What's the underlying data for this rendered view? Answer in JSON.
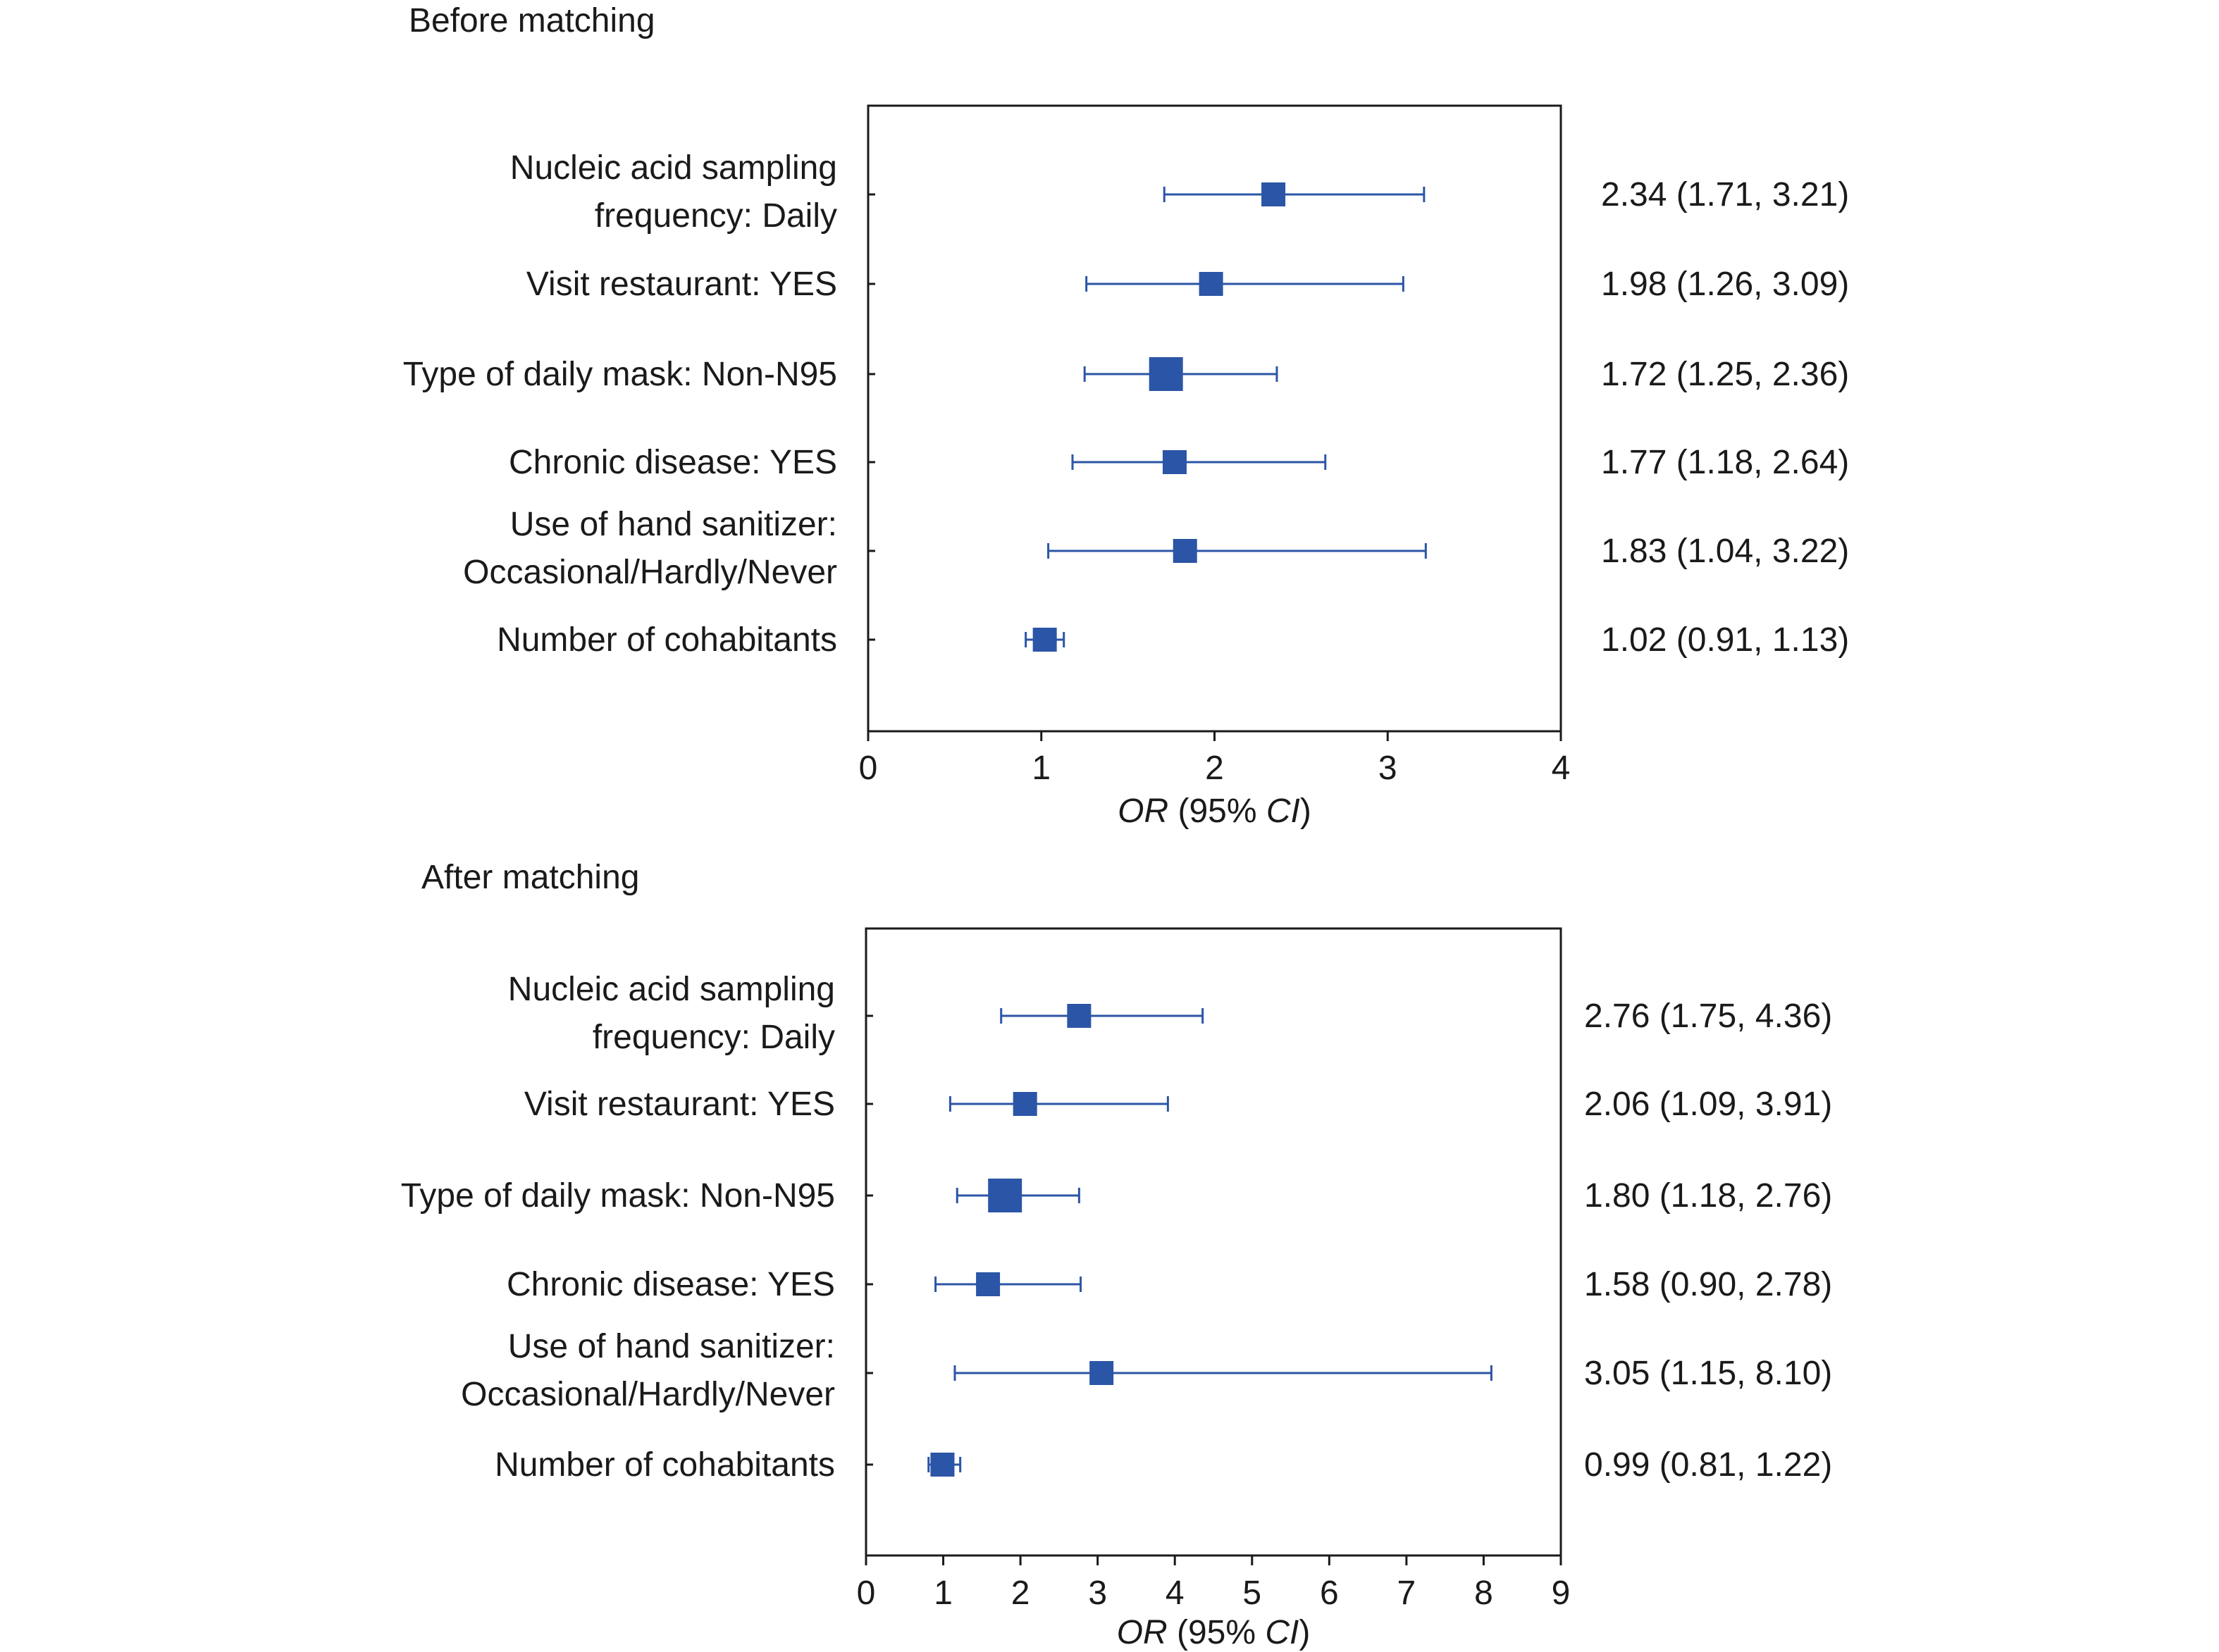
{
  "chart_data": [
    {
      "type": "forest",
      "title": "Before matching",
      "xlabel": "OR (95% CI)",
      "xlim": [
        0,
        4
      ],
      "xticks": [
        0,
        1,
        2,
        3,
        4
      ],
      "grid": false,
      "rows": [
        {
          "label": [
            "Nucleic acid sampling",
            "frequency: Daily"
          ],
          "or": 2.34,
          "lo": 1.71,
          "hi": 3.21,
          "text": "2.34 (1.71, 3.21)"
        },
        {
          "label": [
            "Visit restaurant: YES"
          ],
          "or": 1.98,
          "lo": 1.26,
          "hi": 3.09,
          "text": "1.98 (1.26, 3.09)"
        },
        {
          "label": [
            "Type of daily mask: Non-N95"
          ],
          "or": 1.72,
          "lo": 1.25,
          "hi": 2.36,
          "text": "1.72 (1.25, 2.36)"
        },
        {
          "label": [
            "Chronic disease: YES"
          ],
          "or": 1.77,
          "lo": 1.18,
          "hi": 2.64,
          "text": "1.77 (1.18, 2.64)"
        },
        {
          "label": [
            "Use of hand sanitizer:",
            "Occasional/Hardly/Never"
          ],
          "or": 1.83,
          "lo": 1.04,
          "hi": 3.22,
          "text": "1.83 (1.04, 3.22)"
        },
        {
          "label": [
            "Number of cohabitants"
          ],
          "or": 1.02,
          "lo": 0.91,
          "hi": 1.13,
          "text": "1.02 (0.91, 1.13)"
        }
      ]
    },
    {
      "type": "forest",
      "title": "After matching",
      "xlabel": "OR (95% CI)",
      "xlim": [
        0,
        9
      ],
      "xticks": [
        0,
        1,
        2,
        3,
        4,
        5,
        6,
        7,
        8,
        9
      ],
      "grid": false,
      "rows": [
        {
          "label": [
            "Nucleic acid sampling",
            "frequency: Daily"
          ],
          "or": 2.76,
          "lo": 1.75,
          "hi": 4.36,
          "text": "2.76 (1.75, 4.36)"
        },
        {
          "label": [
            "Visit restaurant: YES"
          ],
          "or": 2.06,
          "lo": 1.09,
          "hi": 3.91,
          "text": "2.06 (1.09, 3.91)"
        },
        {
          "label": [
            "Type of daily mask: Non-N95"
          ],
          "or": 1.8,
          "lo": 1.18,
          "hi": 2.76,
          "text": "1.80 (1.18, 2.76)"
        },
        {
          "label": [
            "Chronic disease: YES"
          ],
          "or": 1.58,
          "lo": 0.9,
          "hi": 2.78,
          "text": "1.58 (0.90, 2.78)"
        },
        {
          "label": [
            "Use of hand sanitizer:",
            "Occasional/Hardly/Never"
          ],
          "or": 3.05,
          "lo": 1.15,
          "hi": 8.1,
          "text": "3.05 (1.15, 8.10)"
        },
        {
          "label": [
            "Number of cohabitants"
          ],
          "or": 0.99,
          "lo": 0.81,
          "hi": 1.22,
          "text": "0.99 (0.81, 1.22)"
        }
      ]
    }
  ],
  "colors": {
    "marker": "#2b55a6",
    "axis": "#1a1a1a",
    "text": "#1a1a1a"
  }
}
